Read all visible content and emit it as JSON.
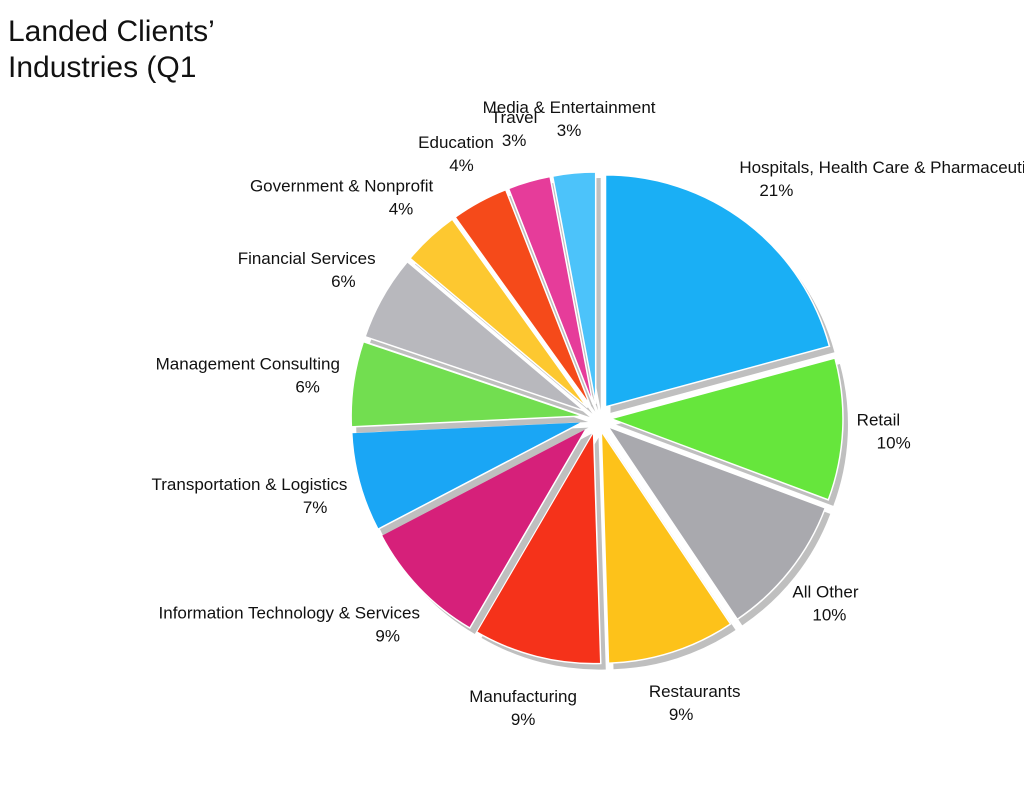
{
  "chart_data": {
    "type": "pie",
    "title": "Landed Clients’ Industries (Q1",
    "categories": [
      "Hospitals, Health Care & Pharmaceuticals",
      "Retail",
      "All Other",
      "Restaurants",
      "Manufacturing",
      "Information Technology & Services",
      "Transportation & Logistics",
      "Management Consulting",
      "Financial Services",
      "Government & Nonprofit",
      "Education",
      "Travel",
      "Media & Entertainment"
    ],
    "values": [
      21,
      10,
      10,
      9,
      9,
      9,
      7,
      6,
      6,
      4,
      4,
      3,
      3
    ],
    "value_labels": [
      "21%",
      "10%",
      "10%",
      "9%",
      "9%",
      "9%",
      "7%",
      "6%",
      "6%",
      "4%",
      "4%",
      "3%",
      "3%"
    ],
    "colors": [
      "#1aaff5",
      "#66e63c",
      "#a9a9ae",
      "#fdc21a",
      "#f5321a",
      "#d6207a",
      "#1aa6f5",
      "#72de50",
      "#b8b8bd",
      "#fdc830",
      "#f54a1a",
      "#e63c9a",
      "#4cc3fa"
    ]
  }
}
